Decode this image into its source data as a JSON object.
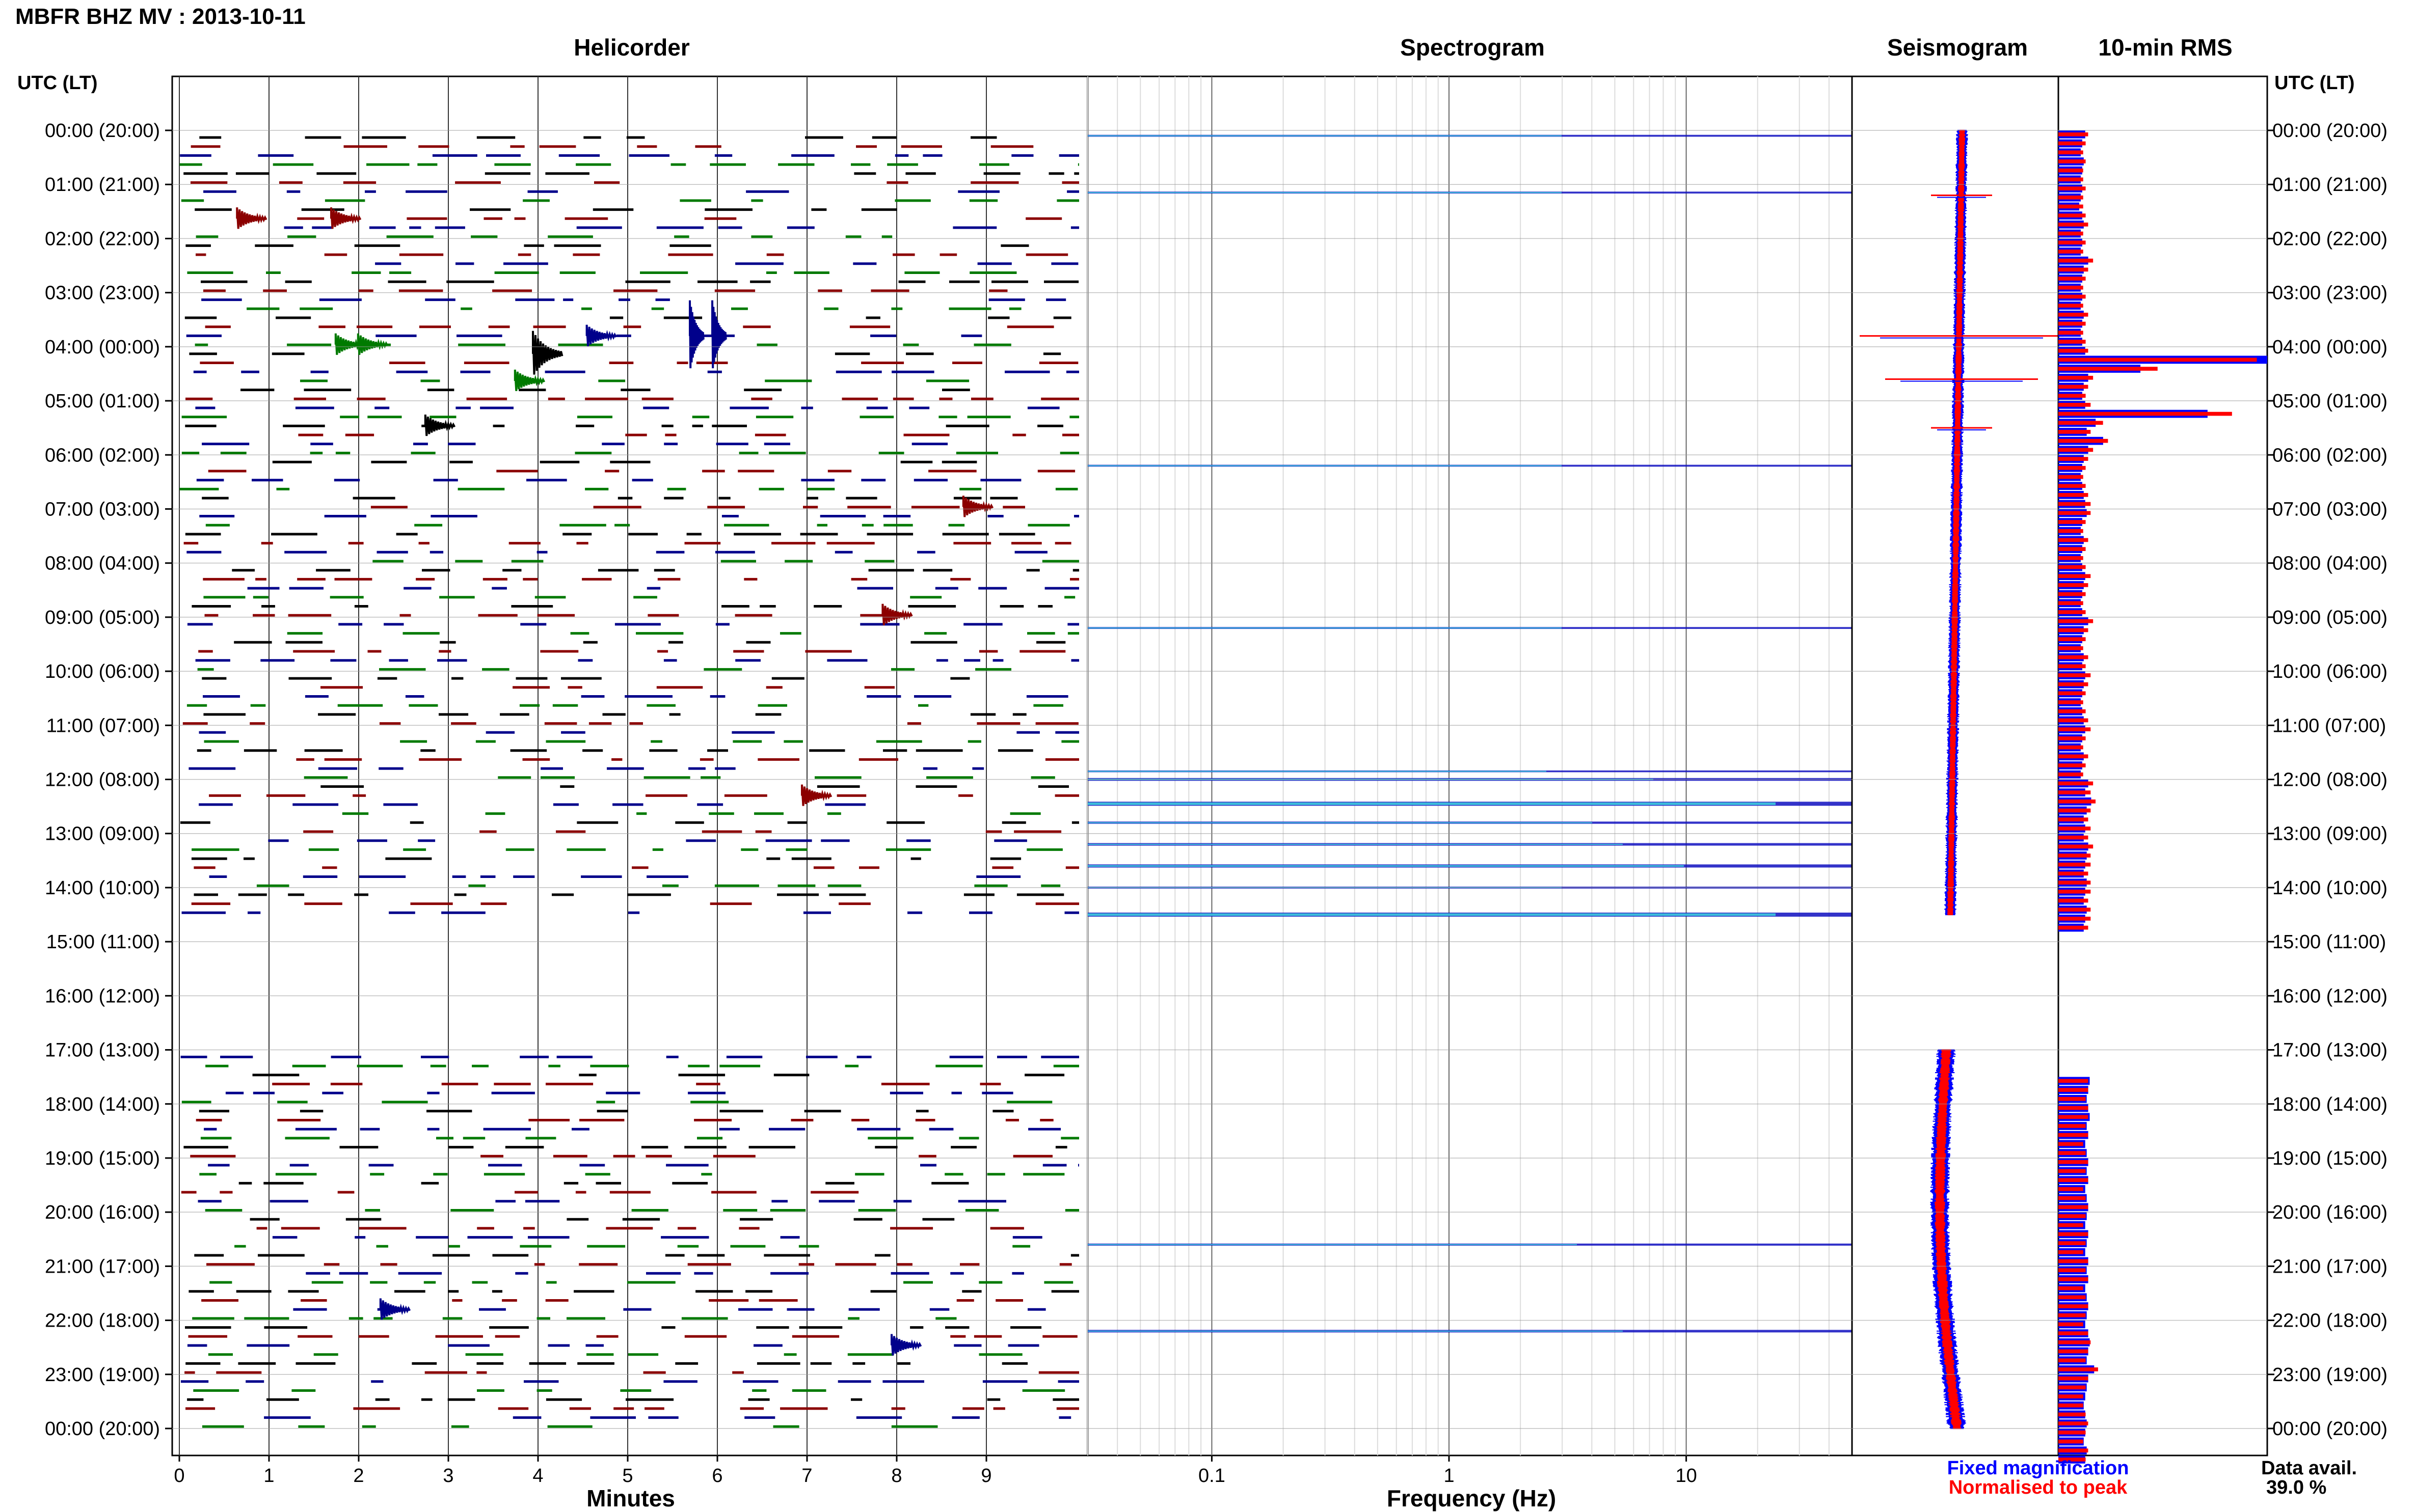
{
  "title": "MBFR BHZ MV : 2013-10-11",
  "panels": {
    "helicorder": "Helicorder",
    "spectrogram": "Spectrogram",
    "seismogram": "Seismogram",
    "rms": "10-min RMS"
  },
  "time_axis_header": "UTC (LT)",
  "time_labels": [
    "00:00 (20:00)",
    "01:00 (21:00)",
    "02:00 (22:00)",
    "03:00 (23:00)",
    "04:00 (00:00)",
    "05:00 (01:00)",
    "06:00 (02:00)",
    "07:00 (03:00)",
    "08:00 (04:00)",
    "09:00 (05:00)",
    "10:00 (06:00)",
    "11:00 (07:00)",
    "12:00 (08:00)",
    "13:00 (09:00)",
    "14:00 (10:00)",
    "15:00 (11:00)",
    "16:00 (12:00)",
    "17:00 (13:00)",
    "18:00 (14:00)",
    "19:00 (15:00)",
    "20:00 (16:00)",
    "21:00 (17:00)",
    "22:00 (18:00)",
    "23:00 (19:00)",
    "00:00 (20:00)"
  ],
  "legend": {
    "fixed": "Fixed magnification",
    "normalised": "Normalised to peak"
  },
  "data_avail": {
    "label": "Data avail.",
    "value": "39.0 %"
  },
  "colors": {
    "trace_cycle": [
      "#000000",
      "#8b0000",
      "#00008b",
      "#007a00"
    ],
    "fixed": "#0000ff",
    "normalised": "#ff0000"
  },
  "chart_data": [
    {
      "type": "line",
      "name": "helicorder",
      "title": "Helicorder",
      "xlabel": "Minutes",
      "xticks": [
        0,
        1,
        2,
        3,
        4,
        5,
        6,
        7,
        8,
        9
      ],
      "xlim": [
        0,
        10
      ],
      "ylim": [
        "00:00",
        "24:00"
      ],
      "lines_per_hour": 6,
      "data_gap_hours": [
        14.5,
        17.0
      ],
      "events": [
        {
          "hour": 1.5,
          "minute": 0.7
        },
        {
          "hour": 1.5,
          "minute": 1.75
        },
        {
          "hour": 3.83,
          "minute": 1.8
        },
        {
          "hour": 3.83,
          "minute": 2.05
        },
        {
          "hour": 4.0,
          "minute": 4.0
        },
        {
          "hour": 3.67,
          "minute": 5.75
        },
        {
          "hour": 3.67,
          "minute": 6.0
        },
        {
          "hour": 4.5,
          "minute": 3.8
        },
        {
          "hour": 5.33,
          "minute": 2.8
        },
        {
          "hour": 3.67,
          "minute": 4.6
        },
        {
          "hour": 6.83,
          "minute": 8.8
        },
        {
          "hour": 8.83,
          "minute": 7.9
        },
        {
          "hour": 12.17,
          "minute": 7.0
        },
        {
          "hour": 21.67,
          "minute": 2.3
        },
        {
          "hour": 22.33,
          "minute": 8.0
        }
      ]
    },
    {
      "type": "heatmap",
      "name": "spectrogram",
      "title": "Spectrogram",
      "xlabel": "Frequency (Hz)",
      "xscale": "log",
      "xlim": [
        0.03,
        50
      ],
      "xticks": [
        0.1,
        1,
        10
      ],
      "xticklabels": [
        "0.1",
        "1",
        "10"
      ],
      "bands": [
        {
          "hour": 0.1,
          "strength": 0.3
        },
        {
          "hour": 1.15,
          "strength": 0.3
        },
        {
          "hour": 6.2,
          "strength": 0.3
        },
        {
          "hour": 9.2,
          "strength": 0.3
        },
        {
          "hour": 11.85,
          "strength": 0.25
        },
        {
          "hour": 12.0,
          "strength": 0.6
        },
        {
          "hour": 12.45,
          "strength": 1.0
        },
        {
          "hour": 12.8,
          "strength": 0.4
        },
        {
          "hour": 13.2,
          "strength": 0.5
        },
        {
          "hour": 13.6,
          "strength": 0.7
        },
        {
          "hour": 14.0,
          "strength": 0.3
        },
        {
          "hour": 14.5,
          "strength": 1.0
        },
        {
          "hour": 20.6,
          "strength": 0.35
        },
        {
          "hour": 22.2,
          "strength": 0.5
        }
      ]
    },
    {
      "type": "line",
      "name": "seismogram",
      "title": "Seismogram",
      "data_gap_hours": [
        14.5,
        17.0
      ],
      "spikes_hours": [
        1.2,
        3.8,
        4.6,
        5.5
      ]
    },
    {
      "type": "bar",
      "name": "rms",
      "title": "10-min RMS",
      "orientation": "horizontal",
      "interval_minutes": 10,
      "start_hour": 0,
      "series": [
        {
          "name": "Fixed magnification",
          "values": [
            0.18,
            0.16,
            0.15,
            0.17,
            0.16,
            0.15,
            0.16,
            0.15,
            0.14,
            0.16,
            0.17,
            0.15,
            0.16,
            0.15,
            0.2,
            0.17,
            0.16,
            0.15,
            0.16,
            0.15,
            0.17,
            0.16,
            0.15,
            0.16,
            0.18,
            1.4,
            0.55,
            0.2,
            0.17,
            0.16,
            0.18,
            1.0,
            0.25,
            0.19,
            0.3,
            0.2,
            0.17,
            0.16,
            0.15,
            0.16,
            0.17,
            0.18,
            0.19,
            0.16,
            0.15,
            0.17,
            0.16,
            0.15,
            0.16,
            0.18,
            0.17,
            0.16,
            0.15,
            0.16,
            0.2,
            0.17,
            0.16,
            0.15,
            0.17,
            0.16,
            0.18,
            0.17,
            0.16,
            0.15,
            0.16,
            0.17,
            0.18,
            0.16,
            0.15,
            0.17,
            0.16,
            0.15,
            0.2,
            0.18,
            0.22,
            0.19,
            0.17,
            0.18,
            0.17,
            0.2,
            0.19,
            0.18,
            0.17,
            0.19,
            0.18,
            0.17,
            0.19,
            0.18,
            0.17,
            null,
            null,
            null,
            null,
            null,
            null,
            null,
            null,
            null,
            null,
            null,
            null,
            null,
            null,
            null,
            null,
            0.21,
            0.2,
            0.19,
            0.2,
            0.21,
            0.19,
            0.2,
            0.18,
            0.19,
            0.2,
            0.19,
            0.2,
            0.18,
            0.19,
            0.2,
            0.19,
            0.18,
            0.2,
            0.19,
            0.18,
            0.2,
            0.19,
            0.2,
            0.18,
            0.19,
            0.2,
            0.19,
            0.18,
            0.2,
            0.21,
            0.2,
            0.19,
            0.24,
            0.2,
            0.19,
            0.18,
            0.17,
            0.18,
            0.19,
            0.18,
            0.17,
            0.19,
            0.18
          ]
        },
        {
          "name": "Normalised to peak",
          "values": [
            0.12,
            0.11,
            0.1,
            0.11,
            0.1,
            0.1,
            0.11,
            0.1,
            0.1,
            0.11,
            0.12,
            0.1,
            0.11,
            0.1,
            0.14,
            0.12,
            0.11,
            0.1,
            0.11,
            0.1,
            0.12,
            0.11,
            0.1,
            0.11,
            0.12,
            0.8,
            0.4,
            0.14,
            0.12,
            0.11,
            0.13,
            0.7,
            0.18,
            0.13,
            0.2,
            0.14,
            0.12,
            0.11,
            0.1,
            0.11,
            0.12,
            0.13,
            0.13,
            0.11,
            0.1,
            0.12,
            0.11,
            0.1,
            0.11,
            0.13,
            0.12,
            0.11,
            0.1,
            0.11,
            0.14,
            0.12,
            0.11,
            0.1,
            0.12,
            0.11,
            0.13,
            0.12,
            0.11,
            0.1,
            0.11,
            0.12,
            0.13,
            0.11,
            0.1,
            0.12,
            0.11,
            0.1,
            0.14,
            0.13,
            0.15,
            0.13,
            0.12,
            0.13,
            0.12,
            0.14,
            0.13,
            0.13,
            0.12,
            0.13,
            0.13,
            0.12,
            0.13,
            0.13,
            0.12,
            null,
            null,
            null,
            null,
            null,
            null,
            null,
            null,
            null,
            null,
            null,
            null,
            null,
            null,
            null,
            null,
            0.12,
            0.12,
            0.11,
            0.12,
            0.12,
            0.11,
            0.12,
            0.1,
            0.11,
            0.12,
            0.11,
            0.12,
            0.1,
            0.11,
            0.12,
            0.11,
            0.1,
            0.12,
            0.11,
            0.1,
            0.12,
            0.11,
            0.12,
            0.1,
            0.11,
            0.12,
            0.11,
            0.1,
            0.12,
            0.13,
            0.12,
            0.11,
            0.16,
            0.12,
            0.11,
            0.1,
            0.1,
            0.11,
            0.12,
            0.11,
            0.1,
            0.12,
            0.11
          ]
        }
      ]
    }
  ]
}
